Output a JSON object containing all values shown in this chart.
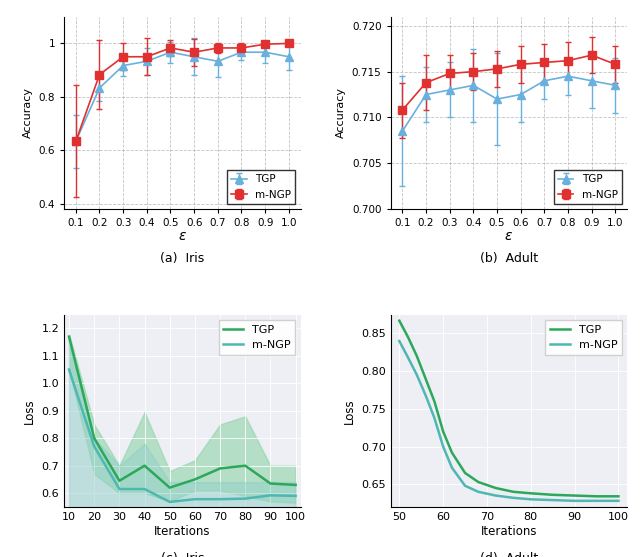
{
  "epsilon": [
    0.1,
    0.2,
    0.3,
    0.4,
    0.5,
    0.6,
    0.7,
    0.8,
    0.9,
    1.0
  ],
  "iris_tgp_mean": [
    0.633,
    0.833,
    0.917,
    0.933,
    0.967,
    0.95,
    0.933,
    0.967,
    0.967,
    0.95
  ],
  "iris_tgp_err": [
    0.1,
    0.05,
    0.04,
    0.05,
    0.04,
    0.07,
    0.06,
    0.03,
    0.04,
    0.05
  ],
  "iris_mngp_mean": [
    0.633,
    0.883,
    0.95,
    0.95,
    0.983,
    0.967,
    0.983,
    0.983,
    0.997,
    1.0
  ],
  "iris_mngp_err": [
    0.21,
    0.13,
    0.05,
    0.07,
    0.03,
    0.05,
    0.02,
    0.02,
    0.01,
    0.005
  ],
  "adult_tgp_mean": [
    0.7085,
    0.7125,
    0.713,
    0.7135,
    0.712,
    0.7125,
    0.714,
    0.7145,
    0.714,
    0.7135
  ],
  "adult_tgp_err": [
    0.006,
    0.003,
    0.003,
    0.004,
    0.005,
    0.003,
    0.002,
    0.002,
    0.003,
    0.003
  ],
  "adult_mngp_mean": [
    0.7108,
    0.7138,
    0.7148,
    0.715,
    0.7153,
    0.7158,
    0.716,
    0.7162,
    0.7168,
    0.7158
  ],
  "adult_mngp_err": [
    0.003,
    0.003,
    0.002,
    0.002,
    0.002,
    0.002,
    0.002,
    0.002,
    0.002,
    0.002
  ],
  "iris_iter": [
    10,
    20,
    30,
    40,
    50,
    60,
    70,
    80,
    90,
    100
  ],
  "iris_tgp_loss": [
    1.17,
    0.8,
    0.645,
    0.7,
    0.62,
    0.65,
    0.69,
    0.7,
    0.635,
    0.63
  ],
  "iris_tgp_loss_lo": [
    1.05,
    0.67,
    0.6,
    0.6,
    0.57,
    0.61,
    0.61,
    0.59,
    0.57,
    0.565
  ],
  "iris_tgp_loss_hi": [
    1.18,
    0.85,
    0.7,
    0.895,
    0.68,
    0.72,
    0.85,
    0.88,
    0.7,
    0.7
  ],
  "iris_mngp_loss": [
    1.05,
    0.77,
    0.615,
    0.615,
    0.568,
    0.578,
    0.578,
    0.58,
    0.592,
    0.59
  ],
  "iris_mngp_loss_lo": [
    0.52,
    0.51,
    0.52,
    0.51,
    0.51,
    0.53,
    0.53,
    0.53,
    0.53,
    0.535
  ],
  "iris_mngp_loss_hi": [
    1.17,
    0.8,
    0.7,
    0.78,
    0.64,
    0.64,
    0.64,
    0.64,
    0.64,
    0.64
  ],
  "adult_iter": [
    50,
    52,
    54,
    56,
    58,
    60,
    62,
    65,
    68,
    72,
    76,
    80,
    85,
    90,
    95,
    100
  ],
  "adult_tgp_loss": [
    0.867,
    0.845,
    0.82,
    0.79,
    0.76,
    0.72,
    0.692,
    0.665,
    0.653,
    0.645,
    0.64,
    0.638,
    0.636,
    0.635,
    0.634,
    0.634
  ],
  "adult_mngp_loss": [
    0.84,
    0.818,
    0.795,
    0.768,
    0.738,
    0.7,
    0.672,
    0.648,
    0.64,
    0.635,
    0.632,
    0.63,
    0.629,
    0.628,
    0.628,
    0.628
  ],
  "tgp_color_top": "#6ab0de",
  "mngp_color_top": "#e03030",
  "tgp_color_bot": "#2ca85a",
  "mngp_color_bot": "#4eb8b0",
  "tgp_fill_bot": "#90d4a8",
  "mngp_fill_bot": "#90cfc8",
  "title_a": "(a)  Iris",
  "title_b": "(b)  Adult",
  "title_c": "(c)  Iris",
  "title_d": "(d)  Adult",
  "xlabel_eps": "$\\epsilon$",
  "xlabel_iter": "Iterations",
  "ylabel_acc": "Accuracy",
  "ylabel_loss": "Loss"
}
